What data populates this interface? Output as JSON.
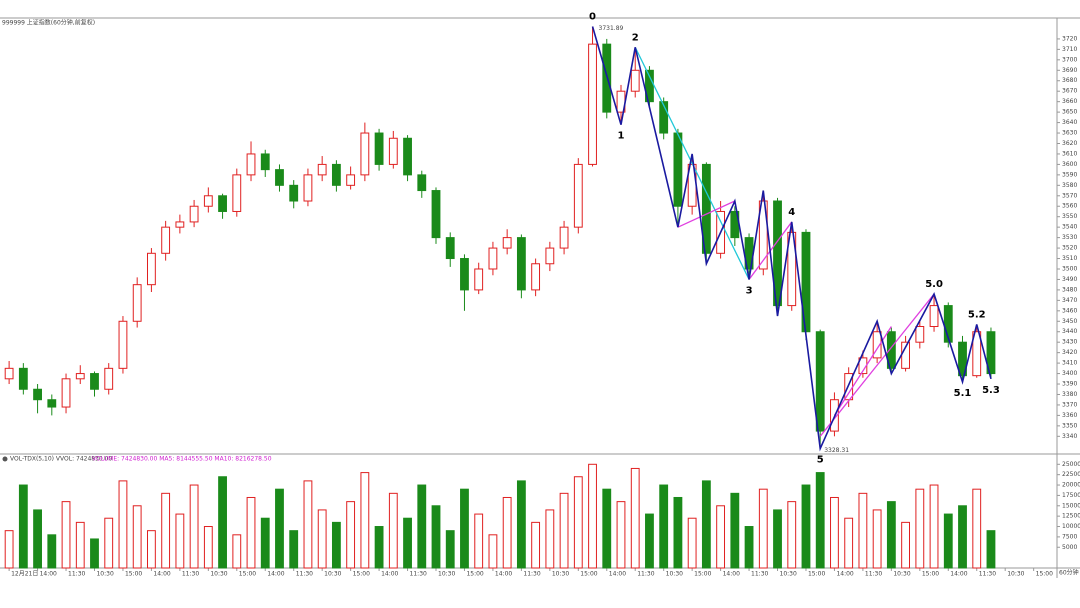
{
  "chart_data": {
    "type": "candlestick",
    "title": "999999 上证指数(60分钟,前复权)",
    "period_label": "60分钟",
    "up_color": "#e02020",
    "down_color": "#1a8a1a",
    "categories": [
      "12月21日",
      null,
      "14:00",
      null,
      "11:30",
      null,
      "10:30",
      null,
      "15:00",
      null,
      "14:00",
      null,
      "11:30",
      null,
      "10:30",
      null,
      "15:00",
      null,
      "14:00",
      null,
      "11:30",
      null,
      "10:30",
      null,
      "15:00",
      null,
      "14:00",
      null,
      "11:30",
      null,
      "10:30",
      null,
      "15:00",
      null,
      "14:00",
      null,
      "11:30",
      null,
      "10:30",
      null,
      "15:00",
      null,
      "14:00",
      null,
      "11:30",
      null,
      "10:30",
      null,
      "15:00",
      null,
      "14:00",
      null,
      "11:30",
      null,
      "10:30",
      null,
      "15:00",
      null,
      "14:00",
      null,
      "11:30",
      null,
      "10:30",
      null,
      "15:00",
      null,
      "14:00",
      null,
      "11:30",
      null,
      "10:30",
      null,
      "15:00",
      null
    ],
    "candles": {
      "open": [
        3395,
        3405,
        3385,
        3375,
        3368,
        3395,
        3400,
        3385,
        3405,
        3450,
        3485,
        3515,
        3540,
        3545,
        3560,
        3570,
        3555,
        3590,
        3610,
        3595,
        3580,
        3565,
        3590,
        3600,
        3580,
        3590,
        3630,
        3600,
        3625,
        3590,
        3575,
        3530,
        3510,
        3480,
        3500,
        3520,
        3530,
        3480,
        3505,
        3520,
        3540,
        3600,
        3715,
        3650,
        3670,
        3690,
        3660,
        3630,
        3560,
        3600,
        3515,
        3555,
        3530,
        3500,
        3565,
        3465,
        3535,
        3440,
        3345,
        3375,
        3400,
        3415,
        3440,
        3405,
        3430,
        3445,
        3465,
        3430,
        3398,
        3440
      ],
      "high": [
        3412,
        3410,
        3390,
        3380,
        3400,
        3408,
        3402,
        3410,
        3455,
        3492,
        3520,
        3546,
        3552,
        3566,
        3578,
        3572,
        3596,
        3622,
        3614,
        3600,
        3585,
        3596,
        3608,
        3604,
        3598,
        3640,
        3634,
        3632,
        3628,
        3594,
        3578,
        3535,
        3514,
        3506,
        3526,
        3538,
        3533,
        3510,
        3526,
        3546,
        3606,
        3731.89,
        3720,
        3676,
        3712,
        3694,
        3664,
        3634,
        3610,
        3602,
        3565,
        3560,
        3534,
        3575,
        3568,
        3545,
        3538,
        3442,
        3382,
        3406,
        3422,
        3450,
        3444,
        3436,
        3450,
        3476,
        3468,
        3436,
        3447,
        3444
      ],
      "low": [
        3390,
        3380,
        3362,
        3360,
        3362,
        3390,
        3378,
        3380,
        3400,
        3444,
        3478,
        3508,
        3534,
        3540,
        3554,
        3548,
        3550,
        3584,
        3588,
        3574,
        3558,
        3560,
        3584,
        3574,
        3576,
        3584,
        3594,
        3596,
        3584,
        3568,
        3524,
        3502,
        3460,
        3476,
        3494,
        3514,
        3472,
        3474,
        3498,
        3514,
        3534,
        3598,
        3644,
        3638,
        3664,
        3654,
        3624,
        3540,
        3552,
        3505,
        3510,
        3522,
        3490,
        3494,
        3455,
        3460,
        3432,
        3328.31,
        3340,
        3368,
        3396,
        3410,
        3400,
        3402,
        3424,
        3440,
        3425,
        3392,
        3396,
        3395
      ],
      "close": [
        3405,
        3385,
        3375,
        3368,
        3395,
        3400,
        3385,
        3405,
        3450,
        3485,
        3515,
        3540,
        3545,
        3560,
        3570,
        3555,
        3590,
        3610,
        3595,
        3580,
        3565,
        3590,
        3600,
        3580,
        3590,
        3630,
        3600,
        3625,
        3590,
        3575,
        3530,
        3510,
        3480,
        3500,
        3520,
        3530,
        3480,
        3505,
        3520,
        3540,
        3600,
        3715,
        3650,
        3670,
        3690,
        3660,
        3630,
        3560,
        3600,
        3515,
        3555,
        3530,
        3500,
        3565,
        3465,
        3535,
        3440,
        3345,
        3375,
        3400,
        3415,
        3440,
        3405,
        3430,
        3445,
        3465,
        3430,
        3398,
        3440,
        3400
      ]
    },
    "ylim": [
      3325,
      3740
    ],
    "yticks": [
      3340,
      3350,
      3360,
      3370,
      3380,
      3390,
      3400,
      3410,
      3420,
      3430,
      3440,
      3450,
      3460,
      3470,
      3480,
      3490,
      3500,
      3510,
      3520,
      3530,
      3540,
      3550,
      3560,
      3570,
      3580,
      3590,
      3600,
      3610,
      3620,
      3630,
      3640,
      3650,
      3660,
      3670,
      3680,
      3690,
      3700,
      3710,
      3720
    ],
    "grid": false,
    "zigzag": {
      "color": "#1a1aa0",
      "x": [
        41,
        43,
        44,
        47,
        48,
        49,
        51,
        52,
        53,
        54,
        55,
        57,
        61,
        62,
        65,
        67,
        68,
        69
      ],
      "values": [
        3731.89,
        3638,
        3712,
        3540,
        3610,
        3505,
        3565,
        3490,
        3575,
        3455,
        3545,
        3328.31,
        3450,
        3400,
        3476,
        3392,
        3447,
        3395
      ]
    },
    "trend_lines": [
      {
        "color": "#20c8d8",
        "x": [
          44,
          52
        ],
        "values": [
          3712,
          3490
        ]
      },
      {
        "color": "#e040e0",
        "x": [
          47,
          51
        ],
        "values": [
          3540,
          3565
        ]
      },
      {
        "color": "#e040e0",
        "x": [
          52,
          55
        ],
        "values": [
          3490,
          3545
        ]
      },
      {
        "color": "#e040e0",
        "x": [
          57,
          65
        ],
        "values": [
          3340,
          3476
        ]
      },
      {
        "color": "#e040e0",
        "x": [
          58,
          62
        ],
        "values": [
          3360,
          3445
        ]
      }
    ],
    "wave_labels": {
      "labels": [
        "0",
        "1",
        "2",
        "3",
        "4",
        "5",
        "5.0",
        "5.1",
        "5.2",
        "5.3"
      ],
      "x": [
        41,
        43,
        44,
        52,
        55,
        57,
        65,
        67,
        68,
        69
      ]
    },
    "volume": {
      "header": "VOL-TDX(5,10) VVOL: 7424830.00",
      "header2": "VOLUME: 7424830.00  MA5: 8144555.50  MA10: 8216278.50",
      "ylim": [
        0,
        27000
      ],
      "yticks": [
        5000,
        7500,
        10000,
        12500,
        15000,
        17500,
        20000,
        22500,
        25000
      ],
      "values": [
        9000,
        20000,
        14000,
        8000,
        16000,
        11000,
        7000,
        12000,
        21000,
        15000,
        9000,
        18000,
        13000,
        20000,
        10000,
        22000,
        8000,
        17000,
        12000,
        19000,
        9000,
        21000,
        14000,
        11000,
        16000,
        23000,
        10000,
        18000,
        12000,
        20000,
        15000,
        9000,
        19000,
        13000,
        8000,
        17000,
        21000,
        11000,
        14000,
        18000,
        22000,
        25000,
        19000,
        16000,
        24000,
        13000,
        20000,
        17000,
        12000,
        21000,
        15000,
        18000,
        10000,
        19000,
        14000,
        16000,
        20000,
        23000,
        17000,
        12000,
        18000,
        14000,
        16000,
        11000,
        19000,
        20000,
        13000,
        15000,
        19000,
        9000
      ]
    }
  }
}
